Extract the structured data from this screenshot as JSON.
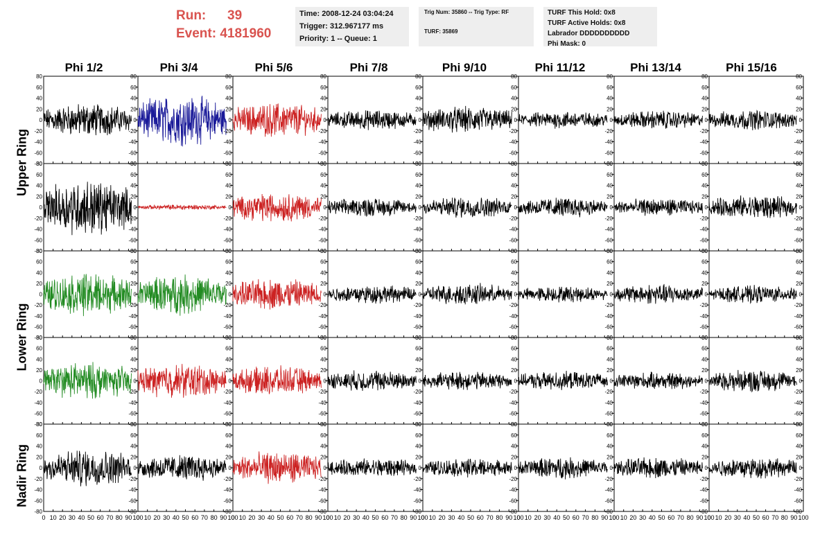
{
  "header": {
    "run_label": "Run:",
    "run_value": "39",
    "event_label": "Event:",
    "event_value": "4181960",
    "time": "Time: 2008-12-24 03:04:24",
    "trigger": "Trigger: 312.967177 ms",
    "priority": "Priority: 1 -- Queue: 1",
    "trig_num": "Trig Num: 35860 -- Trig Type: RF",
    "turf": "TURF: 35869",
    "turf_this_hold": "TURF This Hold: 0x8",
    "turf_active_holds": "TURF Active Holds: 0x8",
    "labrador": "Labrador DDDDDDDDDD",
    "phi_mask": "Phi Mask: 0"
  },
  "ring_labels": [
    "Upper Ring",
    "Lower Ring",
    "Nadir Ring"
  ],
  "colors": {
    "black": "#000000",
    "blue": "#1a1a99",
    "red": "#cc2222",
    "green": "#228b22"
  },
  "chart_data": {
    "type": "line",
    "columns": [
      "Phi 1/2",
      "Phi 3/4",
      "Phi 5/6",
      "Phi 7/8",
      "Phi 9/10",
      "Phi 11/12",
      "Phi 13/14",
      "Phi 15/16"
    ],
    "xlim": [
      0,
      100
    ],
    "ylim": [
      -80,
      80
    ],
    "xticks": [
      0,
      10,
      20,
      30,
      40,
      50,
      60,
      70,
      80,
      90,
      100
    ],
    "yticks": [
      -80,
      -60,
      -40,
      -20,
      0,
      20,
      40,
      60,
      80
    ],
    "rows": [
      {
        "colors": [
          "black",
          "blue",
          "red",
          "black",
          "black",
          "black",
          "black",
          "black"
        ],
        "amplitudes": [
          25,
          38,
          26,
          15,
          20,
          13,
          14,
          15
        ]
      },
      {
        "colors": [
          "black",
          "red",
          "red",
          "black",
          "black",
          "black",
          "black",
          "black"
        ],
        "amplitudes": [
          42,
          4,
          22,
          14,
          16,
          15,
          13,
          18
        ]
      },
      {
        "colors": [
          "green",
          "green",
          "red",
          "black",
          "black",
          "black",
          "black",
          "black"
        ],
        "amplitudes": [
          32,
          30,
          24,
          14,
          16,
          12,
          15,
          13
        ]
      },
      {
        "colors": [
          "green",
          "red",
          "red",
          "black",
          "black",
          "black",
          "black",
          "black"
        ],
        "amplitudes": [
          28,
          26,
          22,
          16,
          14,
          14,
          13,
          17
        ]
      },
      {
        "colors": [
          "black",
          "black",
          "red",
          "black",
          "black",
          "black",
          "black",
          "black"
        ],
        "amplitudes": [
          28,
          20,
          24,
          14,
          14,
          16,
          16,
          16
        ]
      }
    ]
  }
}
